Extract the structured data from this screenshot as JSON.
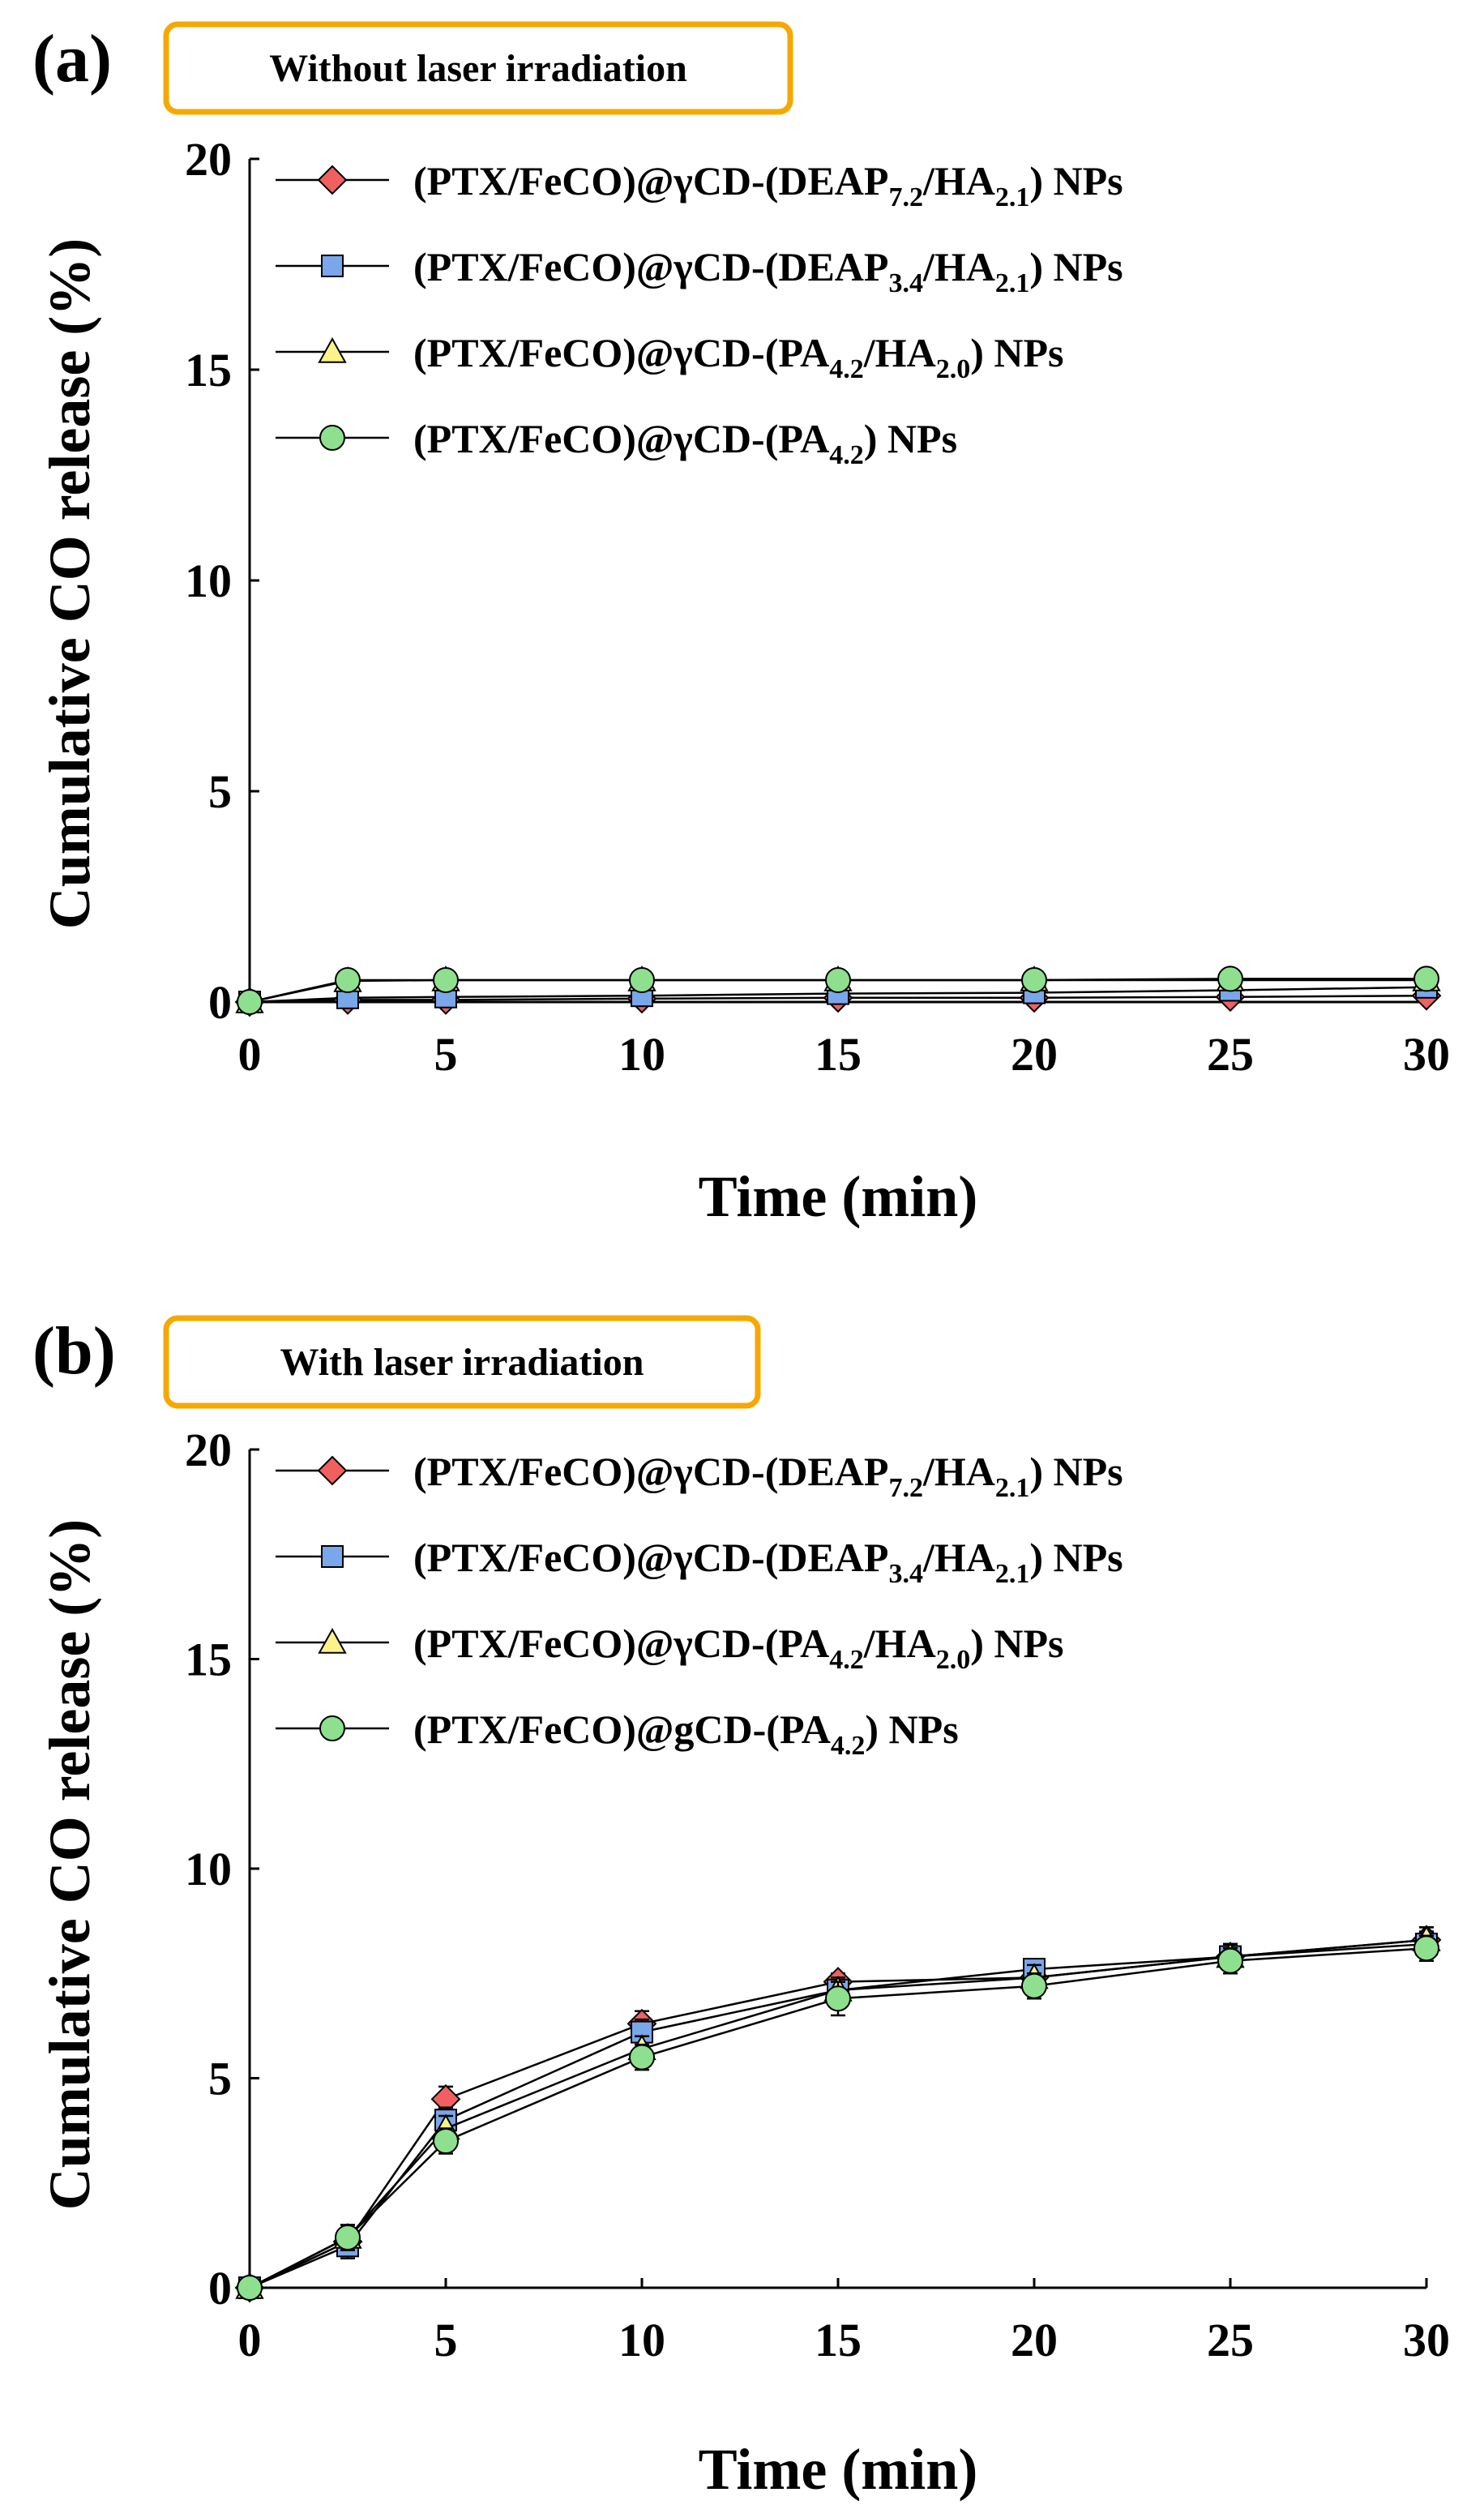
{
  "chart_data": [
    {
      "type": "line",
      "panel_label": "(a)",
      "title": "Without laser irradiation",
      "xlabel": "Time (min)",
      "ylabel": "Cumulative CO release (%)",
      "xlim": [
        0,
        30
      ],
      "ylim": [
        0,
        20
      ],
      "xticks": [
        0,
        5,
        10,
        15,
        20,
        25,
        30
      ],
      "yticks": [
        0,
        5,
        10,
        15,
        20
      ],
      "x": [
        0,
        2.5,
        5,
        10,
        15,
        20,
        25,
        30
      ],
      "legend_position": "top-left",
      "series": [
        {
          "name": "(PTX/FeCO)@γCD-(DEAP7.2/HA2.1) NPs",
          "legend": [
            {
              "t": "(PTX/FeCO)@γCD-(DEAP"
            },
            {
              "t": "7.2",
              "sub": true
            },
            {
              "t": "/HA"
            },
            {
              "t": "2.1",
              "sub": true
            },
            {
              "t": ") NPs"
            }
          ],
          "marker": "diamond",
          "color": "#f06060",
          "values": [
            0,
            0.05,
            0.05,
            0.08,
            0.1,
            0.1,
            0.12,
            0.15
          ],
          "errors": [
            0,
            0.05,
            0.05,
            0.05,
            0.05,
            0.05,
            0.05,
            0.05
          ]
        },
        {
          "name": "(PTX/FeCO)@γCD-(DEAP3.4/HA2.1) NPs",
          "legend": [
            {
              "t": "(PTX/FeCO)@γCD-(DEAP"
            },
            {
              "t": "3.4",
              "sub": true
            },
            {
              "t": "/HA"
            },
            {
              "t": "2.1",
              "sub": true
            },
            {
              "t": ") NPs"
            }
          ],
          "marker": "square",
          "color": "#7aa6ea",
          "values": [
            0,
            0.1,
            0.12,
            0.15,
            0.2,
            0.22,
            0.28,
            0.35
          ],
          "errors": [
            0,
            0.05,
            0.05,
            0.05,
            0.05,
            0.05,
            0.05,
            0.05
          ]
        },
        {
          "name": "(PTX/FeCO)@γCD-(PA4.2/HA2.0) NPs",
          "legend": [
            {
              "t": "(PTX/FeCO)@γCD-(PA"
            },
            {
              "t": "4.2",
              "sub": true
            },
            {
              "t": "/HA"
            },
            {
              "t": "2.0",
              "sub": true
            },
            {
              "t": ") NPs"
            }
          ],
          "marker": "triangle",
          "color": "#fbf38a",
          "values": [
            0,
            0.5,
            0.52,
            0.52,
            0.52,
            0.52,
            0.52,
            0.52
          ],
          "errors": [
            0,
            0.05,
            0.05,
            0.05,
            0.05,
            0.05,
            0.05,
            0.05
          ]
        },
        {
          "name": "(PTX/FeCO)@γCD-(PA4.2) NPs",
          "legend": [
            {
              "t": "(PTX/FeCO)@γCD-(PA"
            },
            {
              "t": "4.2",
              "sub": true
            },
            {
              "t": ") NPs"
            }
          ],
          "marker": "circle",
          "color": "#8ee08e",
          "values": [
            0,
            0.52,
            0.52,
            0.52,
            0.52,
            0.52,
            0.55,
            0.55
          ],
          "errors": [
            0,
            0.08,
            0.08,
            0.08,
            0.1,
            0.1,
            0.1,
            0.12
          ]
        }
      ]
    },
    {
      "type": "line",
      "panel_label": "(b)",
      "title": "With laser irradiation",
      "xlabel": "Time (min)",
      "ylabel": "Cumulative CO release (%)",
      "xlim": [
        0,
        30
      ],
      "ylim": [
        0,
        20
      ],
      "xticks": [
        0,
        5,
        10,
        15,
        20,
        25,
        30
      ],
      "yticks": [
        0,
        5,
        10,
        15,
        20
      ],
      "x": [
        0,
        2.5,
        5,
        10,
        15,
        20,
        25,
        30
      ],
      "legend_position": "top-left",
      "series": [
        {
          "name": "(PTX/FeCO)@γCD-(DEAP7.2/HA2.1) NPs",
          "legend": [
            {
              "t": "(PTX/FeCO)@γCD-(DEAP"
            },
            {
              "t": "7.2",
              "sub": true
            },
            {
              "t": "/HA"
            },
            {
              "t": "2.1",
              "sub": true
            },
            {
              "t": ") NPs"
            }
          ],
          "marker": "diamond",
          "color": "#f06060",
          "values": [
            0,
            1.1,
            4.5,
            6.3,
            7.3,
            7.4,
            7.9,
            8.3
          ],
          "errors": [
            0,
            0.3,
            0.3,
            0.3,
            0.2,
            0.3,
            0.3,
            0.3
          ]
        },
        {
          "name": "(PTX/FeCO)@γCD-(DEAP3.4/HA2.1) NPs",
          "legend": [
            {
              "t": "(PTX/FeCO)@γCD-(DEAP"
            },
            {
              "t": "3.4",
              "sub": true
            },
            {
              "t": "/HA"
            },
            {
              "t": "2.1",
              "sub": true
            },
            {
              "t": ") NPs"
            }
          ],
          "marker": "square",
          "color": "#7aa6ea",
          "values": [
            0,
            1.0,
            4.0,
            6.1,
            7.1,
            7.6,
            7.9,
            8.2
          ],
          "errors": [
            0,
            0.3,
            0.3,
            0.3,
            0.2,
            0.2,
            0.3,
            0.3
          ]
        },
        {
          "name": "(PTX/FeCO)@γCD-(PA4.2/HA2.0) NPs",
          "legend": [
            {
              "t": "(PTX/FeCO)@γCD-(PA"
            },
            {
              "t": "4.2",
              "sub": true
            },
            {
              "t": "/HA"
            },
            {
              "t": "2.0",
              "sub": true
            },
            {
              "t": ") NPs"
            }
          ],
          "marker": "triangle",
          "color": "#fbf38a",
          "values": [
            0,
            1.2,
            3.8,
            5.7,
            7.1,
            7.4,
            7.9,
            8.3
          ],
          "errors": [
            0,
            0.3,
            0.3,
            0.3,
            0.3,
            0.3,
            0.3,
            0.3
          ]
        },
        {
          "name": "(PTX/FeCO)@gCD-(PA4.2) NPs",
          "legend": [
            {
              "t": "(PTX/FeCO)@gCD-(PA"
            },
            {
              "t": "4.2",
              "sub": true
            },
            {
              "t": ") NPs"
            }
          ],
          "marker": "circle",
          "color": "#8ee08e",
          "values": [
            0,
            1.2,
            3.5,
            5.5,
            6.9,
            7.2,
            7.8,
            8.1
          ],
          "errors": [
            0,
            0.3,
            0.3,
            0.3,
            0.4,
            0.3,
            0.3,
            0.3
          ]
        }
      ]
    }
  ]
}
